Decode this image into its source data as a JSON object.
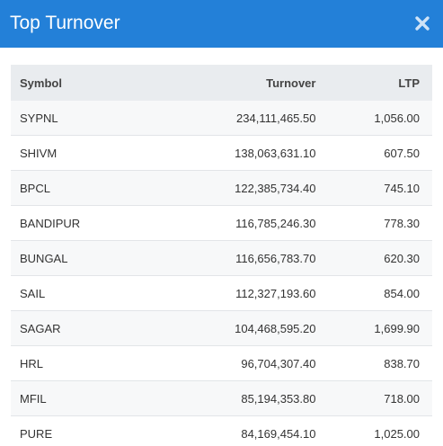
{
  "modal": {
    "title": "Top Turnover",
    "close_icon": "close-icon",
    "header_color": "#2380d8"
  },
  "table": {
    "headers": {
      "symbol": "Symbol",
      "turnover": "Turnover",
      "ltp": "LTP"
    },
    "rows": [
      {
        "symbol": "SYPNL",
        "turnover": "234,111,465.50",
        "ltp": "1,056.00"
      },
      {
        "symbol": "SHIVM",
        "turnover": "138,063,631.10",
        "ltp": "607.50"
      },
      {
        "symbol": "BPCL",
        "turnover": "122,385,734.40",
        "ltp": "745.10"
      },
      {
        "symbol": "BANDIPUR",
        "turnover": "116,785,246.30",
        "ltp": "778.30"
      },
      {
        "symbol": "BUNGAL",
        "turnover": "116,656,783.70",
        "ltp": "620.30"
      },
      {
        "symbol": "SAIL",
        "turnover": "112,327,193.60",
        "ltp": "854.00"
      },
      {
        "symbol": "SAGAR",
        "turnover": "104,468,595.20",
        "ltp": "1,699.90"
      },
      {
        "symbol": "HRL",
        "turnover": "96,704,307.40",
        "ltp": "838.70"
      },
      {
        "symbol": "MFIL",
        "turnover": "85,194,353.80",
        "ltp": "718.00"
      },
      {
        "symbol": "PURE",
        "turnover": "84,169,454.10",
        "ltp": "1,025.00"
      }
    ]
  }
}
